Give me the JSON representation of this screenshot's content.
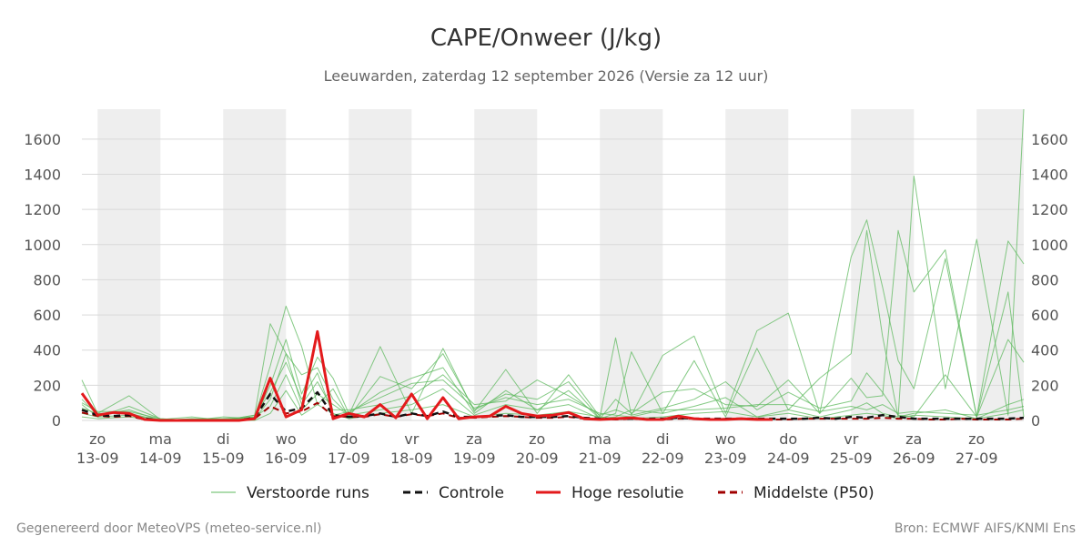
{
  "footer": {
    "left": "Gegenereerd door MeteoVPS (meteo-service.nl)",
    "right": "Bron: ECMWF AIFS/KNMI Ens"
  },
  "chart_data": {
    "type": "line",
    "title": "CAPE/Onweer (J/kg)",
    "subtitle": "Leeuwarden, zaterdag 12 september 2026 (Versie za 12 uur)",
    "xlabel": "",
    "ylabel": "",
    "x_range": [
      -0.25,
      14.75
    ],
    "ylim": [
      0,
      1770
    ],
    "y_ticks": [
      0,
      200,
      400,
      600,
      800,
      1000,
      1200,
      1400,
      1600
    ],
    "y_axis_both_sides": true,
    "grid": true,
    "weekend_shading": [
      [
        0,
        1
      ],
      [
        2,
        3
      ],
      [
        4,
        5
      ],
      [
        6,
        7
      ],
      [
        8,
        9
      ],
      [
        10,
        11
      ],
      [
        12,
        13
      ],
      [
        14,
        14.75
      ]
    ],
    "x_ticks": [
      {
        "x": 0,
        "day": "zo",
        "date": "13-09"
      },
      {
        "x": 1,
        "day": "ma",
        "date": "14-09"
      },
      {
        "x": 2,
        "day": "di",
        "date": "15-09"
      },
      {
        "x": 3,
        "day": "wo",
        "date": "16-09"
      },
      {
        "x": 4,
        "day": "do",
        "date": "17-09"
      },
      {
        "x": 5,
        "day": "vr",
        "date": "18-09"
      },
      {
        "x": 6,
        "day": "za",
        "date": "19-09"
      },
      {
        "x": 7,
        "day": "zo",
        "date": "20-09"
      },
      {
        "x": 8,
        "day": "ma",
        "date": "21-09"
      },
      {
        "x": 9,
        "day": "di",
        "date": "22-09"
      },
      {
        "x": 10,
        "day": "wo",
        "date": "23-09"
      },
      {
        "x": 11,
        "day": "do",
        "date": "24-09"
      },
      {
        "x": 12,
        "day": "vr",
        "date": "25-09"
      },
      {
        "x": 13,
        "day": "za",
        "date": "26-09"
      },
      {
        "x": 14,
        "day": "zo",
        "date": "27-09"
      }
    ],
    "legend_position": "bottom",
    "legend": [
      {
        "key": "ensemble",
        "label": "Verstoorde runs",
        "color": "#5cb85c",
        "style": "thin"
      },
      {
        "key": "control",
        "label": "Controle",
        "color": "#111111",
        "style": "dashed"
      },
      {
        "key": "hires",
        "label": "Hoge resolutie",
        "color": "#e31a1c",
        "style": "solid"
      },
      {
        "key": "median",
        "label": "Middelste (P50)",
        "color": "#a00000",
        "style": "dashed"
      }
    ],
    "series": [
      {
        "key": "hires",
        "x": [
          -0.25,
          0,
          0.25,
          0.5,
          0.75,
          1,
          1.25,
          1.5,
          1.75,
          2,
          2.25,
          2.5,
          2.75,
          3,
          3.25,
          3.5,
          3.75,
          4,
          4.25,
          4.5,
          4.75,
          5,
          5.25,
          5.5,
          5.75,
          6,
          6.25,
          6.5,
          6.75,
          7,
          7.25,
          7.5,
          7.75,
          8,
          8.25,
          8.5,
          8.75,
          9,
          9.25,
          9.5,
          9.75,
          10,
          10.25,
          10.5,
          10.75
        ],
        "values": [
          155,
          30,
          45,
          40,
          5,
          0,
          0,
          0,
          0,
          0,
          0,
          10,
          240,
          20,
          60,
          505,
          10,
          40,
          20,
          90,
          15,
          150,
          10,
          130,
          10,
          20,
          25,
          80,
          40,
          25,
          30,
          45,
          10,
          5,
          10,
          15,
          5,
          5,
          25,
          10,
          5,
          5,
          10,
          5,
          5
        ]
      },
      {
        "key": "control",
        "x": [
          -0.25,
          0,
          0.25,
          0.5,
          0.75,
          1,
          1.25,
          1.5,
          1.75,
          2,
          2.25,
          2.5,
          2.75,
          3,
          3.25,
          3.5,
          3.75,
          4,
          4.25,
          4.5,
          4.75,
          5,
          5.25,
          5.5,
          5.75,
          6,
          6.25,
          6.5,
          6.75,
          7,
          7.25,
          7.5,
          7.75,
          8,
          8.25,
          8.5,
          8.75,
          9,
          9.25,
          9.5,
          9.75,
          10,
          10.25,
          10.5,
          10.75,
          11,
          11.25,
          11.5,
          11.75,
          12,
          12.25,
          12.5,
          12.75,
          13,
          13.25,
          13.5,
          13.75,
          14,
          14.25,
          14.5,
          14.75
        ],
        "values": [
          60,
          30,
          25,
          30,
          10,
          0,
          0,
          0,
          0,
          0,
          0,
          15,
          150,
          50,
          70,
          160,
          30,
          20,
          25,
          40,
          20,
          40,
          25,
          50,
          20,
          20,
          25,
          30,
          20,
          20,
          20,
          25,
          15,
          10,
          10,
          10,
          10,
          10,
          15,
          10,
          10,
          10,
          10,
          10,
          10,
          10,
          10,
          15,
          10,
          20,
          15,
          30,
          20,
          10,
          10,
          10,
          10,
          10,
          10,
          10,
          15
        ]
      },
      {
        "key": "median",
        "x": [
          -0.25,
          0,
          0.25,
          0.5,
          0.75,
          1,
          1.25,
          1.5,
          1.75,
          2,
          2.25,
          2.5,
          2.75,
          3,
          3.25,
          3.5,
          3.75,
          4,
          4.25,
          4.5,
          4.75,
          5,
          5.25,
          5.5,
          5.75,
          6,
          6.25,
          6.5,
          6.75,
          7,
          7.25,
          7.5,
          7.75,
          8,
          8.25,
          8.5,
          8.75,
          9,
          9.25,
          9.5,
          9.75,
          10,
          10.25,
          10.5,
          10.75,
          11,
          11.25,
          11.5,
          11.75,
          12,
          12.25,
          12.5,
          12.75,
          13,
          13.25,
          13.5,
          13.75,
          14,
          14.25,
          14.5,
          14.75
        ],
        "values": [
          45,
          25,
          20,
          25,
          5,
          0,
          0,
          0,
          0,
          0,
          0,
          10,
          80,
          40,
          50,
          100,
          25,
          20,
          20,
          35,
          20,
          35,
          25,
          40,
          15,
          15,
          20,
          25,
          20,
          15,
          15,
          20,
          10,
          10,
          5,
          10,
          5,
          5,
          10,
          10,
          5,
          10,
          10,
          10,
          5,
          5,
          10,
          10,
          10,
          10,
          10,
          15,
          10,
          10,
          5,
          5,
          10,
          5,
          5,
          5,
          10
        ]
      },
      {
        "key": "ensemble",
        "x": [
          -0.25,
          0,
          0.5,
          1,
          1.5,
          2,
          2.5,
          2.75,
          3,
          3.25,
          3.5,
          3.75,
          4,
          4.5,
          5,
          5.5,
          6,
          6.5,
          7,
          7.5,
          8,
          8.25,
          8.5,
          9,
          9.5,
          10,
          10.5,
          11,
          11.5,
          12,
          12.25,
          12.5,
          12.75,
          13,
          13.5,
          14,
          14.5,
          14.75
        ],
        "values": [
          230,
          40,
          140,
          5,
          20,
          0,
          30,
          550,
          380,
          260,
          300,
          120,
          30,
          420,
          40,
          410,
          50,
          290,
          40,
          260,
          20,
          470,
          30,
          370,
          480,
          40,
          510,
          610,
          40,
          930,
          1140,
          760,
          340,
          180,
          920,
          20,
          730,
          20
        ]
      },
      {
        "key": "ensemble",
        "x": [
          -0.25,
          0,
          0.5,
          1,
          1.5,
          2,
          2.5,
          2.75,
          3,
          3.25,
          3.5,
          3.75,
          4,
          4.5,
          5,
          5.5,
          6,
          6.5,
          7,
          7.5,
          8,
          8.25,
          8.5,
          9,
          9.5,
          10,
          10.5,
          11,
          11.5,
          12,
          12.25,
          12.5,
          12.75,
          13,
          13.5,
          14,
          14.5,
          14.75
        ],
        "values": [
          120,
          30,
          60,
          0,
          10,
          10,
          20,
          310,
          650,
          420,
          90,
          180,
          20,
          250,
          180,
          380,
          60,
          150,
          120,
          220,
          10,
          40,
          390,
          40,
          340,
          20,
          410,
          60,
          240,
          380,
          1080,
          480,
          20,
          1390,
          180,
          1030,
          30,
          1770
        ]
      },
      {
        "key": "ensemble",
        "x": [
          -0.25,
          0,
          0.5,
          1,
          1.5,
          2,
          2.5,
          2.75,
          3,
          3.25,
          3.5,
          3.75,
          4,
          4.5,
          5,
          5.5,
          6,
          6.5,
          7,
          7.5,
          8,
          8.25,
          8.5,
          9,
          9.5,
          10,
          10.5,
          11,
          11.5,
          12,
          12.25,
          12.5,
          12.75,
          13,
          13.5,
          14,
          14.5,
          14.75
        ],
        "values": [
          90,
          20,
          80,
          10,
          0,
          20,
          10,
          200,
          460,
          150,
          360,
          240,
          40,
          160,
          240,
          300,
          40,
          170,
          60,
          170,
          10,
          120,
          40,
          160,
          180,
          90,
          80,
          230,
          40,
          240,
          130,
          140,
          1080,
          730,
          970,
          20,
          1020,
          890
        ]
      },
      {
        "key": "ensemble",
        "x": [
          -0.25,
          0,
          0.5,
          1,
          1.5,
          2,
          2.5,
          2.75,
          3,
          3.25,
          3.5,
          3.75,
          4,
          4.5,
          5,
          5.5,
          6,
          6.5,
          7,
          7.5,
          8,
          8.25,
          8.5,
          9,
          9.5,
          10,
          10.5,
          11,
          11.5,
          12,
          12.25,
          12.5,
          12.75,
          13,
          13.5,
          14,
          14.5,
          14.75
        ],
        "values": [
          70,
          40,
          40,
          0,
          5,
          10,
          10,
          120,
          380,
          90,
          220,
          60,
          60,
          90,
          140,
          260,
          90,
          110,
          230,
          140,
          30,
          60,
          30,
          70,
          120,
          220,
          60,
          160,
          70,
          110,
          270,
          160,
          30,
          20,
          260,
          20,
          460,
          330
        ]
      },
      {
        "key": "ensemble",
        "x": [
          -0.25,
          0,
          0.5,
          1,
          1.5,
          2,
          2.5,
          2.75,
          3,
          3.25,
          3.5,
          3.75,
          4,
          4.5,
          5,
          5.5,
          6,
          6.5,
          7,
          7.5,
          8,
          8.25,
          8.5,
          9,
          9.5,
          10,
          10.5,
          11,
          11.5,
          12,
          12.25,
          12.5,
          12.75,
          13,
          13.5,
          14,
          14.5,
          14.75
        ],
        "values": [
          40,
          20,
          30,
          5,
          0,
          0,
          20,
          80,
          260,
          60,
          150,
          90,
          30,
          60,
          90,
          180,
          30,
          90,
          60,
          90,
          10,
          20,
          60,
          40,
          80,
          130,
          20,
          60,
          20,
          60,
          100,
          40,
          20,
          40,
          60,
          10,
          90,
          120
        ]
      },
      {
        "key": "ensemble",
        "x": [
          -0.25,
          0,
          0.5,
          1,
          1.5,
          2,
          2.5,
          2.75,
          3,
          3.25,
          3.5,
          3.75,
          4,
          4.5,
          5,
          5.5,
          6,
          6.5,
          7,
          7.5,
          8,
          8.25,
          8.5,
          9,
          9.5,
          10,
          10.5,
          11,
          11.5,
          12,
          12.25,
          12.5,
          12.75,
          13,
          13.5,
          14,
          14.5,
          14.75
        ],
        "values": [
          20,
          10,
          20,
          0,
          10,
          0,
          0,
          40,
          170,
          30,
          90,
          40,
          10,
          40,
          60,
          90,
          20,
          40,
          30,
          50,
          20,
          10,
          10,
          20,
          40,
          50,
          20,
          40,
          10,
          30,
          40,
          30,
          10,
          30,
          20,
          10,
          40,
          60
        ]
      },
      {
        "key": "ensemble",
        "x": [
          -0.25,
          0,
          0.5,
          1,
          1.5,
          2,
          2.5,
          2.75,
          3,
          3.25,
          3.5,
          3.75,
          4,
          4.5,
          5,
          5.5,
          6,
          6.5,
          7,
          7.5,
          8,
          8.25,
          8.5,
          9,
          9.5,
          10,
          10.5,
          11,
          11.5,
          12,
          12.25,
          12.5,
          12.75,
          13,
          13.5,
          14,
          14.5,
          14.75
        ],
        "values": [
          100,
          50,
          50,
          10,
          0,
          0,
          30,
          160,
          330,
          120,
          270,
          30,
          50,
          130,
          210,
          230,
          70,
          130,
          90,
          120,
          40,
          30,
          20,
          60,
          60,
          70,
          90,
          90,
          50,
          80,
          60,
          90,
          40,
          50,
          40,
          30,
          60,
          80
        ]
      }
    ]
  }
}
